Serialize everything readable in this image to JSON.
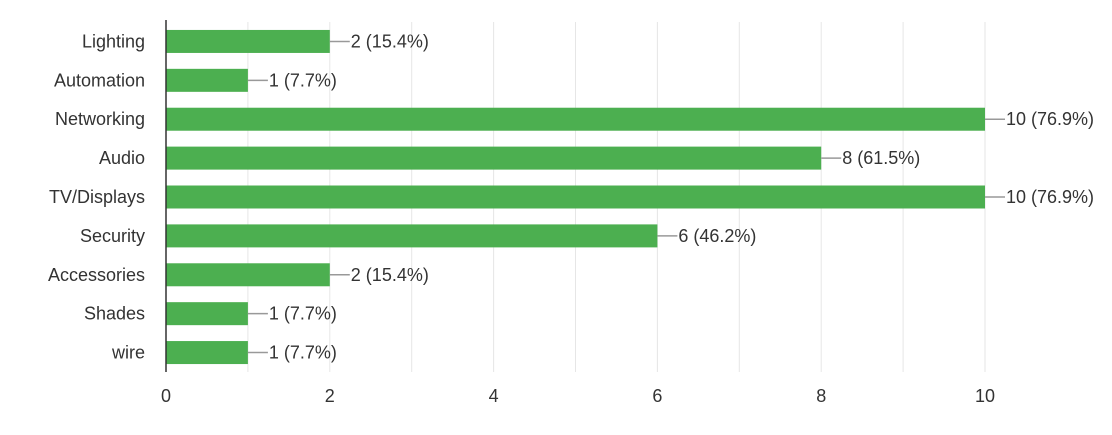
{
  "chart_data": {
    "type": "bar",
    "orientation": "horizontal",
    "categories": [
      "Lighting",
      "Automation",
      "Networking",
      "Audio",
      "TV/Displays",
      "Security",
      "Accessories",
      "Shades",
      "wire"
    ],
    "values": [
      2,
      1,
      10,
      8,
      10,
      6,
      2,
      1,
      1
    ],
    "data_labels": [
      "2 (15.4%)",
      "1 (7.7%)",
      "10 (76.9%)",
      "8 (61.5%)",
      "10 (76.9%)",
      "6 (46.2%)",
      "2 (15.4%)",
      "1 (7.7%)",
      "1 (7.7%)"
    ],
    "xlim": [
      0,
      10
    ],
    "xticks": [
      0,
      2,
      4,
      6,
      8,
      10
    ],
    "xtick_labels": [
      "0",
      "2",
      "4",
      "6",
      "8",
      "10"
    ],
    "grid": true,
    "bar_color": "#4caf50",
    "title": "",
    "xlabel": "",
    "ylabel": ""
  }
}
